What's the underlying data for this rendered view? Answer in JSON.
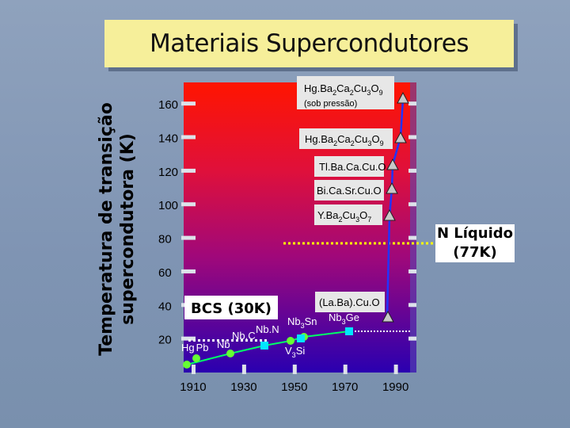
{
  "title": "Materiais Supercondutores",
  "chart_data": {
    "type": "scatter",
    "title": "Materiais Supercondutores",
    "ylabel": "Temperatura de transição\nsupercondutora (K)",
    "xlabel": "",
    "xlim": [
      1905,
      1997
    ],
    "ylim": [
      0,
      170
    ],
    "x_ticks": [
      1910,
      1930,
      1950,
      1970,
      1990
    ],
    "y_ticks": [
      20,
      40,
      60,
      80,
      100,
      120,
      140,
      160
    ],
    "reference_line": {
      "y": 77,
      "label": "N Líquido\n(77K)"
    },
    "bcs_label": "BCS (30K)",
    "bcs_y": 30,
    "series": [
      {
        "points": [
          {
            "x": 1911,
            "y": 4,
            "label": "Hg"
          },
          {
            "x": 1913,
            "y": 7,
            "label": "Pb"
          },
          {
            "x": 1930,
            "y": 9,
            "label": "Nb"
          },
          {
            "x": 1941,
            "y": 15,
            "label": "NbN"
          },
          {
            "x": 1953,
            "y": 17,
            "label": "NbC"
          },
          {
            "x": 1954,
            "y": 18,
            "label": "Nb3Sn"
          },
          {
            "x": 1956,
            "y": 17,
            "label": "V3Si"
          },
          {
            "x": 1973,
            "y": 23,
            "label": "Nb3Ge"
          }
        ]
      },
      {
        "points": [
          {
            "x": 1986,
            "y": 30,
            "label": "(La,Ba)CuO"
          },
          {
            "x": 1987,
            "y": 92,
            "label": "YBa2Cu3O7"
          },
          {
            "x": 1988,
            "y": 110,
            "label": "BiCaSrCuO"
          },
          {
            "x": 1988,
            "y": 125,
            "label": "TlBaCaCuO"
          },
          {
            "x": 1993,
            "y": 133,
            "label": "HgBa2Ca2Cu3O9"
          },
          {
            "x": 1994,
            "y": 164,
            "label": "HgBa2Ca2Cu3O9 (sob pressão)"
          }
        ]
      }
    ],
    "boxed_labels": {
      "hg_pressure": {
        "formula_parts": [
          "Hg.Ba",
          "2",
          "Ca",
          "2",
          "Cu",
          "3",
          "O",
          "9"
        ],
        "note": "(sob pressão)"
      },
      "hg": {
        "formula_parts": [
          "Hg.Ba",
          "2",
          "Ca",
          "2",
          "Cu",
          "3",
          "O",
          "9"
        ]
      },
      "tl": "Tl.Ba.Ca.Cu.O",
      "bi": "Bi.Ca.Sr.Cu.O",
      "y": {
        "formula_parts": [
          "Y.Ba",
          "2",
          "Cu",
          "3",
          "O",
          "7"
        ]
      },
      "la": "(La.Ba).Cu.O"
    },
    "point_labels": {
      "hg": "Hg",
      "pb": "Pb",
      "nb": "Nb",
      "nbc": "Nb.C",
      "nbn": "Nb.N",
      "nb3sn": [
        "Nb",
        "3",
        "Sn"
      ],
      "nb3ge": [
        "Nb",
        "3",
        "Ge"
      ],
      "v3si": [
        "V",
        "3",
        "Si"
      ]
    },
    "colors": {
      "background_top": "#ff1500",
      "background_bottom": "#2a00b0",
      "reference_line": "#ffff00",
      "low_tc_line": "#00ff66",
      "high_tc_line": "#2233ff"
    }
  }
}
